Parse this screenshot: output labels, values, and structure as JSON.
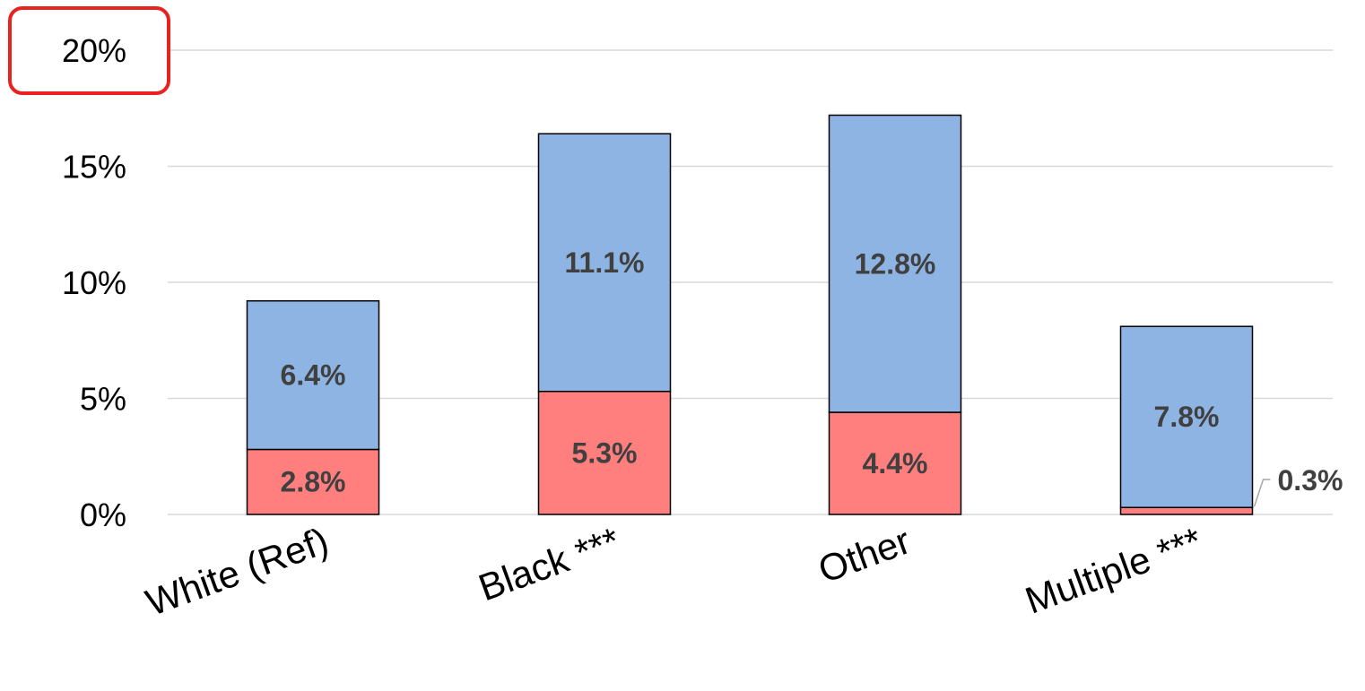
{
  "chart_data": {
    "type": "bar",
    "stacked": true,
    "categories": [
      "White (Ref)",
      "Black ***",
      "Other",
      "Multiple ***"
    ],
    "series": [
      {
        "values": [
          2.8,
          5.3,
          4.4,
          0.3
        ],
        "color": "#FF7F7F"
      },
      {
        "values": [
          6.4,
          11.1,
          12.8,
          7.8
        ],
        "color": "#8EB4E3"
      }
    ],
    "data_labels": {
      "bottom": [
        "2.8%",
        "5.3%",
        "4.4%",
        "0.3%"
      ],
      "top": [
        "6.4%",
        "11.1%",
        "12.8%",
        "7.8%"
      ]
    },
    "y_ticks": [
      "0%",
      "5%",
      "10%",
      "15%",
      "20%"
    ],
    "ylim": [
      0,
      20
    ],
    "grid": true,
    "legend": "none",
    "highlight": {
      "tick": "20%",
      "color": "#E8231F"
    }
  }
}
